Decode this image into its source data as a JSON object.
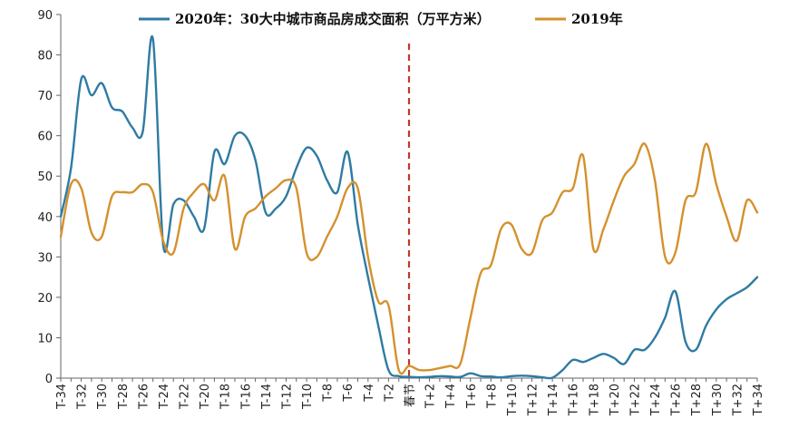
{
  "chart_data": {
    "type": "line",
    "title": "",
    "xlabel": "",
    "ylabel": "",
    "ylim": [
      0,
      90
    ],
    "yticks": [
      0,
      10,
      20,
      30,
      40,
      50,
      60,
      70,
      80,
      90
    ],
    "grid": false,
    "legend_position": "top",
    "event_marker": {
      "x": 0,
      "label": "春节",
      "color": "#c0392b"
    },
    "x": [
      -34,
      -33,
      -32,
      -31,
      -30,
      -29,
      -28,
      -27,
      -26,
      -25,
      -24,
      -23,
      -22,
      -21,
      -20,
      -19,
      -18,
      -17,
      -16,
      -15,
      -14,
      -13,
      -12,
      -11,
      -10,
      -9,
      -8,
      -7,
      -6,
      -5,
      -4,
      -3,
      -2,
      -1,
      0,
      1,
      2,
      3,
      4,
      5,
      6,
      7,
      8,
      9,
      10,
      11,
      12,
      13,
      14,
      15,
      16,
      17,
      18,
      19,
      20,
      21,
      22,
      23,
      24,
      25,
      26,
      27,
      28,
      29,
      30,
      31,
      32,
      33,
      34
    ],
    "xtick_labels": [
      "T-34",
      "T-32",
      "T-30",
      "T-28",
      "T-26",
      "T-24",
      "T-22",
      "T-20",
      "T-18",
      "T-16",
      "T-14",
      "T-12",
      "T-10",
      "T-8",
      "T-6",
      "T-4",
      "T-2",
      "T+2",
      "T+4",
      "T+6",
      "T+8",
      "T+10",
      "T+12",
      "T+14",
      "T+16",
      "T+18",
      "T+20",
      "T+22",
      "T+24",
      "T+26",
      "T+28",
      "T+30",
      "T+32",
      "T+34"
    ],
    "series": [
      {
        "name": "2020年：30大中城市商品房成交面积（万平方米）",
        "color": "#2e7ba3",
        "values": [
          40,
          52,
          74,
          70,
          73,
          67,
          66,
          62,
          61,
          84,
          33,
          43,
          44,
          40,
          37,
          56,
          53,
          60,
          60,
          54,
          41,
          42,
          45,
          52,
          57,
          55,
          49,
          46,
          56,
          38,
          25,
          13,
          2,
          0.5,
          0.3,
          0.2,
          0.3,
          0.5,
          0.4,
          0.3,
          1.2,
          0.5,
          0.4,
          0.2,
          0.5,
          0.6,
          0.5,
          0.2,
          0.1,
          2,
          4.5,
          4,
          5,
          6,
          5,
          3.5,
          7,
          7,
          10,
          15,
          21.5,
          9,
          7,
          13,
          17,
          19.5,
          21,
          22.5,
          25
        ]
      },
      {
        "name": "2019年",
        "color": "#d4912d",
        "values": [
          35,
          48,
          47,
          36,
          35,
          45,
          46,
          46,
          48,
          46,
          34,
          31,
          42,
          46,
          48,
          44,
          50,
          32,
          40,
          42,
          45,
          47,
          49,
          47,
          31,
          30,
          35,
          40,
          47,
          47,
          30,
          19,
          18,
          2,
          3,
          2,
          2,
          2.5,
          3,
          3.5,
          15,
          26,
          28,
          37,
          38,
          32,
          31,
          39,
          41,
          46,
          47,
          55,
          32,
          37,
          44,
          50,
          53,
          58,
          49,
          30,
          31,
          44,
          46,
          58,
          48,
          40,
          34,
          44,
          41
        ]
      }
    ]
  }
}
